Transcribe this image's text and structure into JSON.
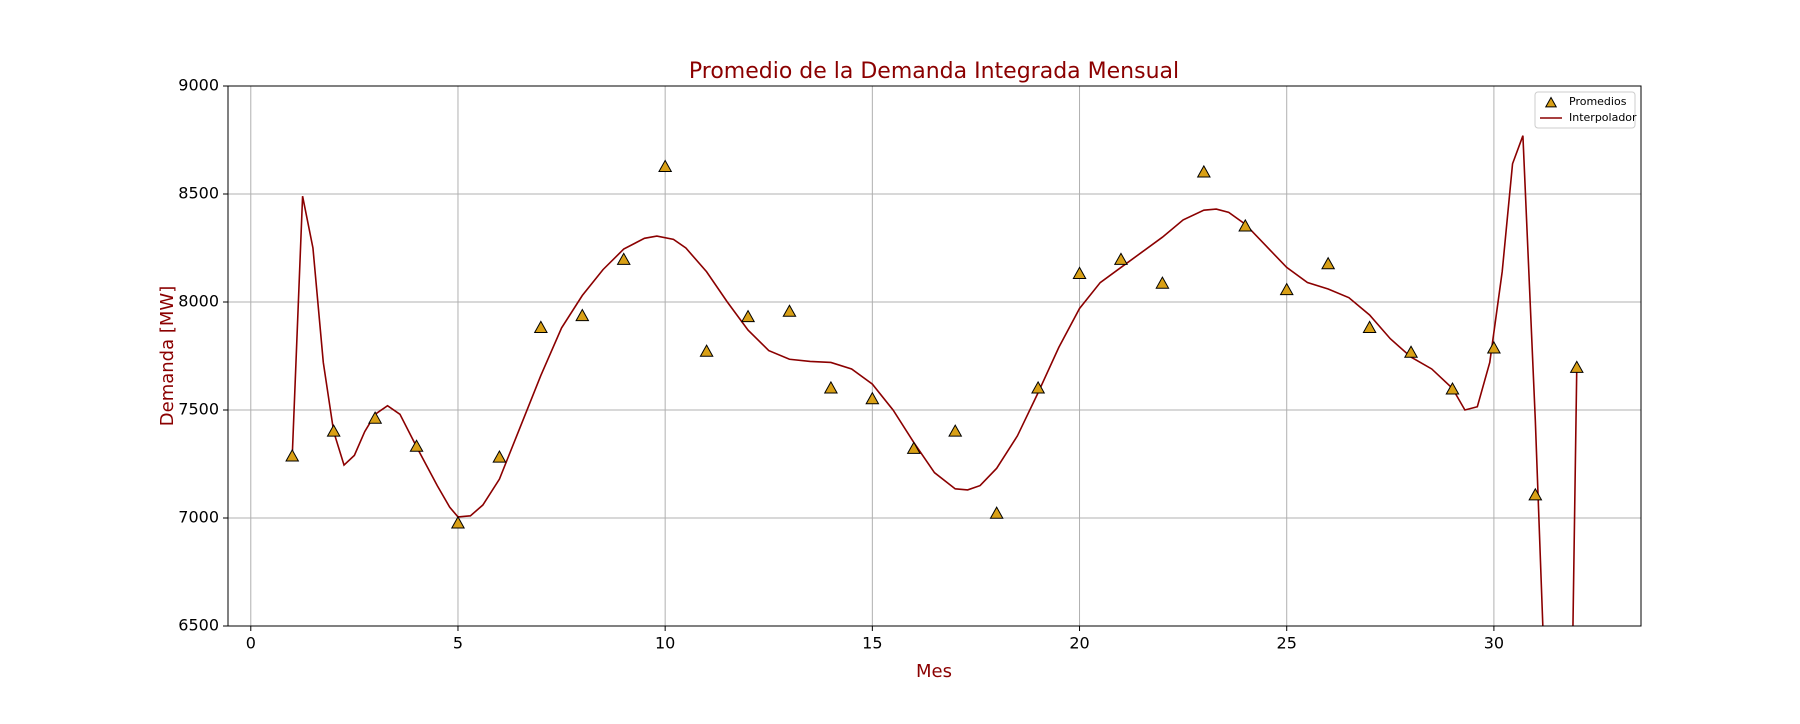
{
  "chart_data": {
    "type": "scatter",
    "title": "Promedio de la Demanda Integrada Mensual",
    "x_label": "Mes",
    "y_label": "Demanda [MW]",
    "xlim": [
      -0.55,
      33.55
    ],
    "xticks": [
      0,
      5,
      10,
      15,
      20,
      25,
      30
    ],
    "ylim": [
      6500,
      9000
    ],
    "yticks": [
      6500,
      7000,
      7500,
      8000,
      8500,
      9000
    ],
    "grid": true,
    "legend": "upper right",
    "series": [
      {
        "name": "Promedios",
        "type": "scatter",
        "marker": "triangle",
        "color": "#d9a016",
        "x": [
          1,
          2,
          3,
          4,
          5,
          6,
          7,
          8,
          9,
          10,
          11,
          12,
          13,
          14,
          15,
          16,
          17,
          18,
          19,
          20,
          21,
          22,
          23,
          24,
          25,
          26,
          27,
          28,
          29,
          30,
          31,
          32
        ],
        "values": [
          7285,
          7400,
          7460,
          7330,
          6975,
          7280,
          7880,
          7935,
          8195,
          8625,
          7770,
          7930,
          7955,
          7600,
          7550,
          7320,
          7400,
          7020,
          7600,
          8130,
          8195,
          8085,
          8600,
          8350,
          8055,
          8175,
          7880,
          7765,
          7595,
          7785,
          7105,
          7695
        ]
      },
      {
        "name": "Interpolador",
        "type": "line",
        "color": "#8b0000",
        "x": [
          1,
          1.25,
          1.5,
          1.75,
          2,
          2.25,
          2.5,
          2.75,
          3,
          3.3,
          3.6,
          4,
          4.5,
          4.8,
          5,
          5.3,
          5.6,
          6,
          6.5,
          7,
          7.5,
          8,
          8.5,
          9,
          9.5,
          9.8,
          10.2,
          10.5,
          11,
          11.5,
          12,
          12.5,
          13,
          13.5,
          14,
          14.5,
          15,
          15.5,
          16,
          16.5,
          17,
          17.3,
          17.6,
          18,
          18.5,
          19,
          19.5,
          20,
          20.5,
          21,
          21.5,
          22,
          22.5,
          23,
          23.3,
          23.6,
          24,
          24.5,
          25,
          25.5,
          26,
          26.5,
          27,
          27.5,
          28,
          28.5,
          29,
          29.3,
          29.6,
          29.9,
          30.2,
          30.45,
          30.7,
          31,
          31.2,
          31.9,
          32
        ],
        "values": [
          7285,
          8490,
          8250,
          7720,
          7400,
          7245,
          7290,
          7400,
          7480,
          7520,
          7480,
          7330,
          7150,
          7050,
          7005,
          7010,
          7060,
          7180,
          7420,
          7660,
          7880,
          8030,
          8150,
          8245,
          8295,
          8305,
          8290,
          8250,
          8140,
          8000,
          7870,
          7775,
          7735,
          7725,
          7720,
          7690,
          7620,
          7500,
          7350,
          7210,
          7135,
          7130,
          7150,
          7230,
          7380,
          7580,
          7790,
          7970,
          8090,
          8160,
          8230,
          8300,
          8380,
          8425,
          8430,
          8415,
          8360,
          8260,
          8160,
          8090,
          8060,
          8020,
          7940,
          7830,
          7745,
          7690,
          7600,
          7500,
          7515,
          7720,
          8140,
          8640,
          8770,
          7450,
          6400,
          6400,
          7695
        ]
      }
    ]
  }
}
